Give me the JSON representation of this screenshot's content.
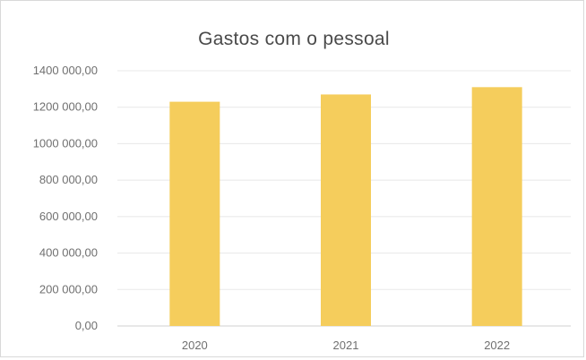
{
  "chart_data": {
    "type": "bar",
    "title": "Gastos com o pessoal",
    "xlabel": "",
    "ylabel": "",
    "categories": [
      "2020",
      "2021",
      "2022"
    ],
    "series": [
      {
        "values": [
          1230000,
          1270000,
          1310000
        ],
        "color": "#f5cd5c"
      }
    ],
    "ylim": [
      0,
      1400000
    ],
    "yticks": [
      0,
      200000,
      400000,
      600000,
      800000,
      1000000,
      1200000,
      1400000
    ],
    "ytick_labels": [
      "0,00",
      "200 000,00",
      "400 000,00",
      "600 000,00",
      "800 000,00",
      "1000 000,00",
      "1200 000,00",
      "1400 000,00"
    ],
    "grid": true,
    "legend": "none"
  }
}
